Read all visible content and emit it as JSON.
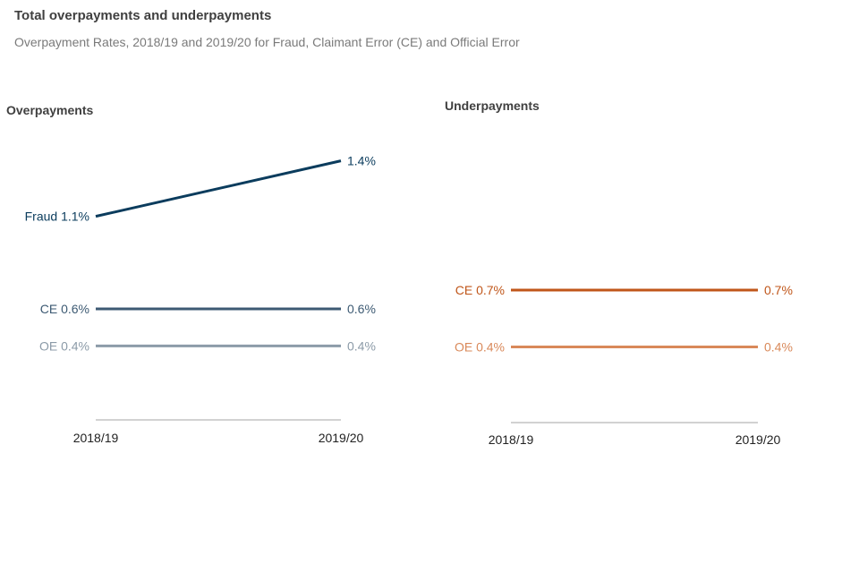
{
  "header": {
    "title": "Total overpayments and underpayments",
    "subtitle": "Overpayment Rates, 2018/19 and 2019/20 for Fraud, Claimant Error (CE)  and Official Error"
  },
  "chart_data": [
    {
      "type": "line",
      "title": "Overpayments",
      "categories": [
        "2018/19",
        "2019/20"
      ],
      "ylim": [
        0,
        1.6
      ],
      "series": [
        {
          "name": "Fraud",
          "values": [
            1.1,
            1.4
          ],
          "labels": [
            "Fraud 1.1%",
            "1.4%"
          ],
          "color": "#0b3c5d"
        },
        {
          "name": "CE",
          "values": [
            0.6,
            0.6
          ],
          "labels": [
            "CE 0.6%",
            "0.6%"
          ],
          "color": "#3d5a73"
        },
        {
          "name": "OE",
          "values": [
            0.4,
            0.4
          ],
          "labels": [
            "OE 0.4%",
            "0.4%"
          ],
          "color": "#8c9ba8"
        }
      ]
    },
    {
      "type": "line",
      "title": "Underpayments",
      "categories": [
        "2018/19",
        "2019/20"
      ],
      "ylim": [
        0,
        1.6
      ],
      "series": [
        {
          "name": "CE",
          "values": [
            0.7,
            0.7
          ],
          "labels": [
            "CE 0.7%",
            "0.7%"
          ],
          "color": "#c0561a"
        },
        {
          "name": "OE",
          "values": [
            0.4,
            0.4
          ],
          "labels": [
            "OE 0.4%",
            "0.4%"
          ],
          "color": "#d9895a"
        }
      ]
    }
  ]
}
